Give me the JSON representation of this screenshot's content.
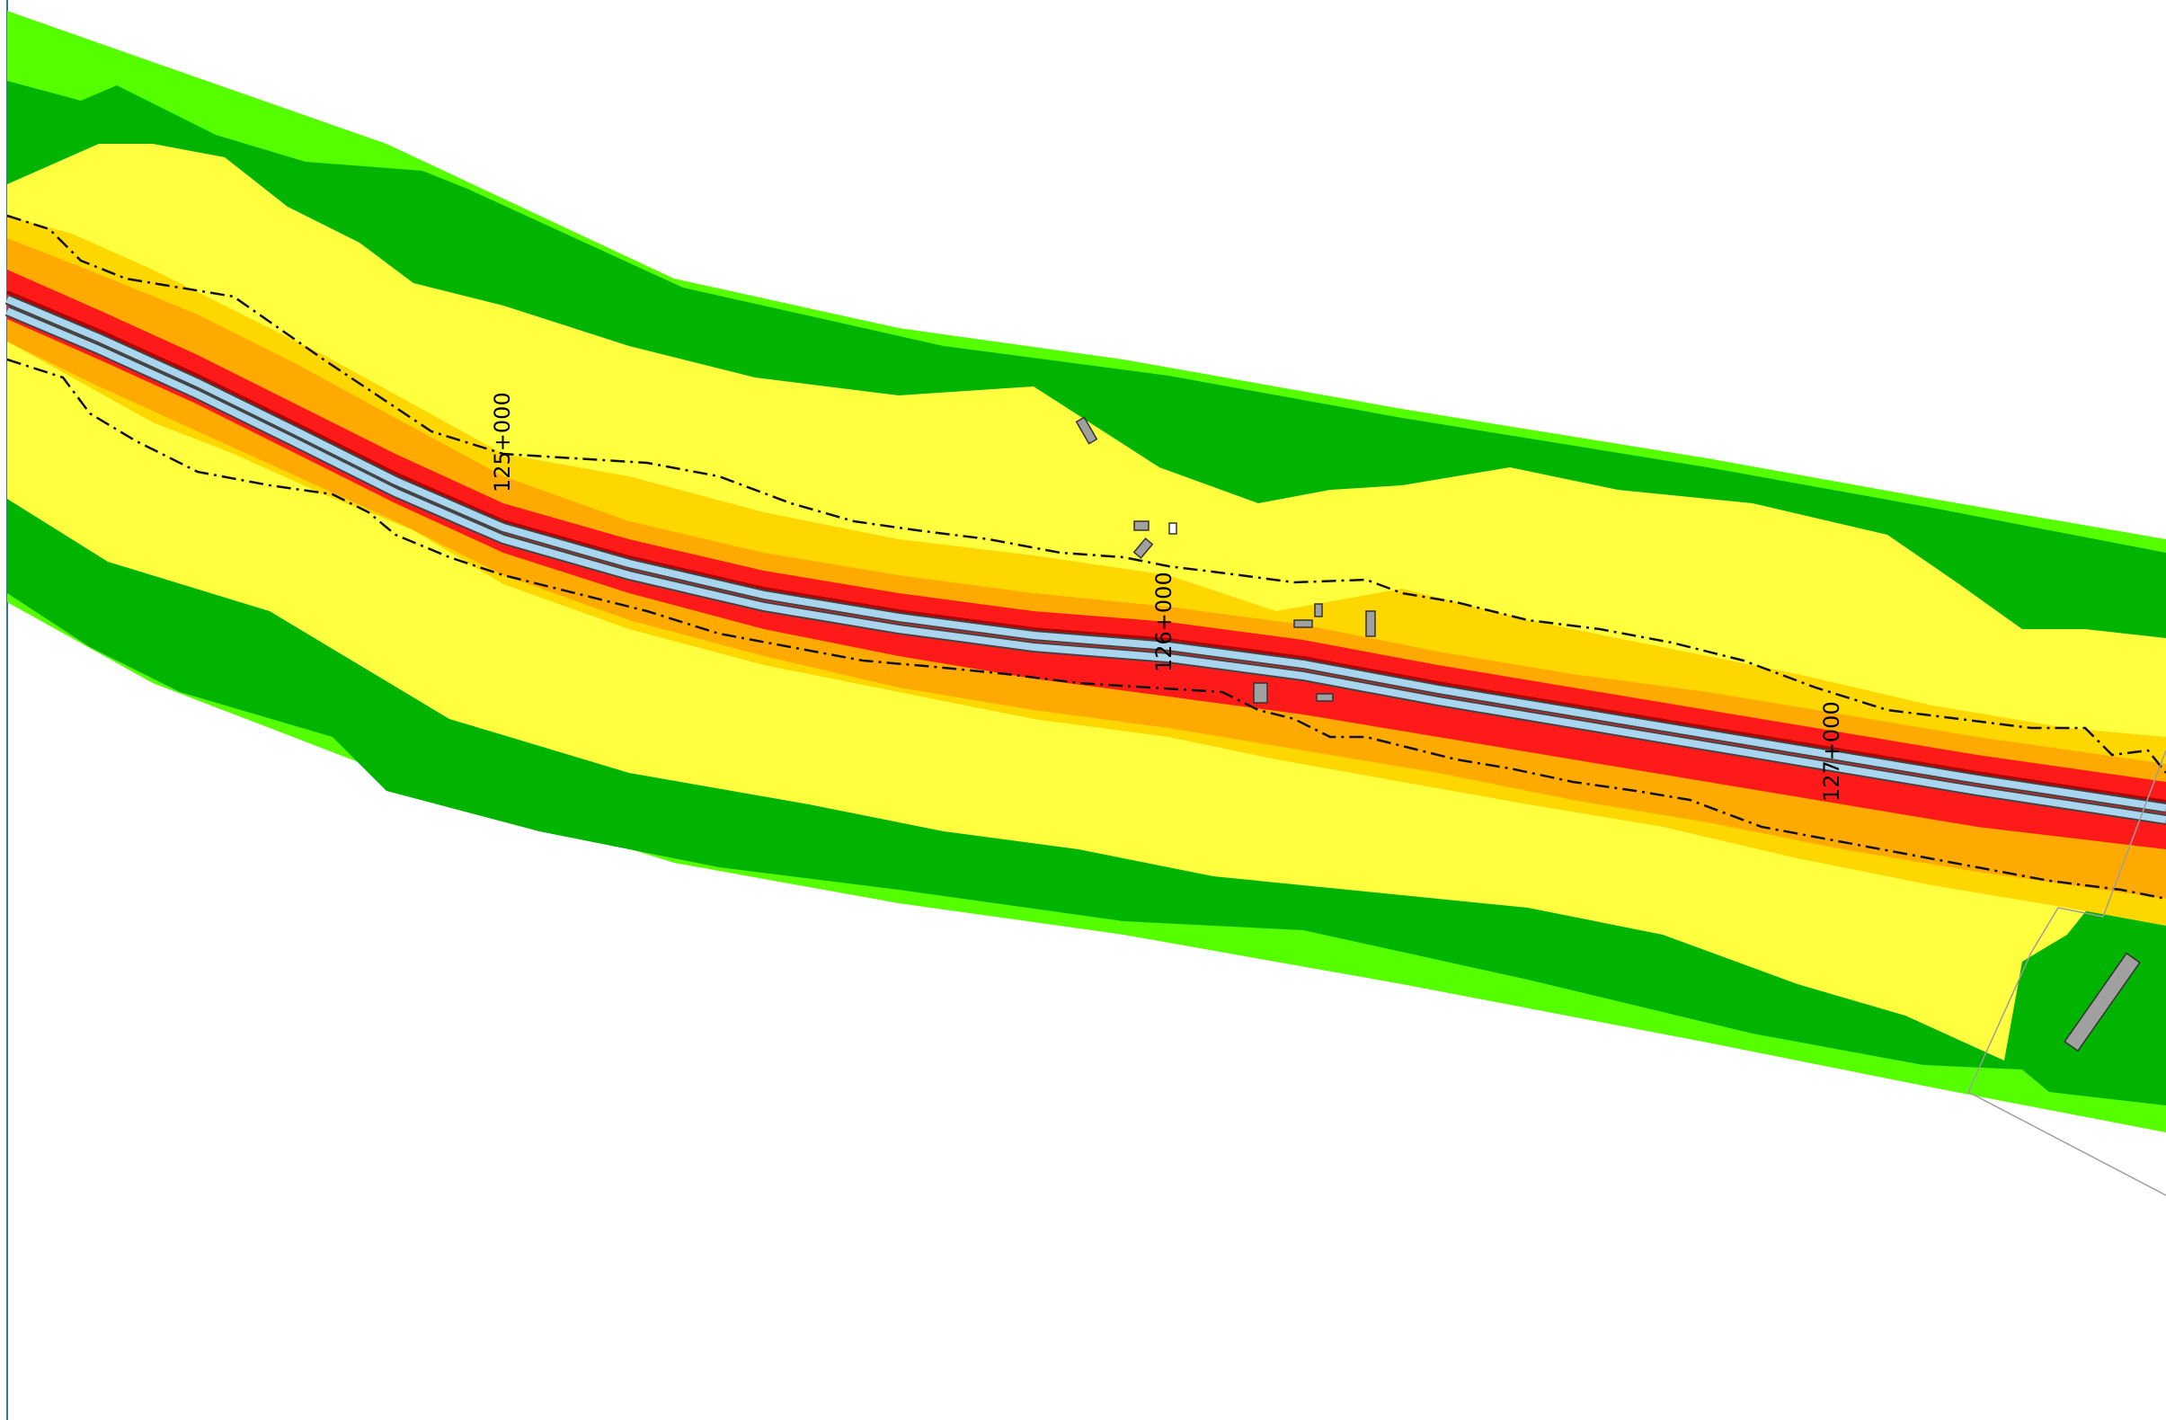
{
  "map": {
    "chainage_labels": [
      {
        "id": "km-125",
        "text": "125+000"
      },
      {
        "id": "km-126",
        "text": "126+000"
      },
      {
        "id": "km-127",
        "text": "127+000"
      }
    ]
  },
  "colors": {
    "background": "#ffffff",
    "light_green_zone": "#55ff00",
    "green_zone": "#00b400",
    "light_yellow_zone": "#ffff40",
    "yellow_zone": "#ffd700",
    "orange_zone": "#ffaa00",
    "red_zone": "#ff1a1a",
    "dark_red_edge": "#b30000",
    "road_surface": "#a9d6ee",
    "building": "#a0a0a0",
    "contour_line": "#111111",
    "frame_line": "#2f6fc4"
  }
}
